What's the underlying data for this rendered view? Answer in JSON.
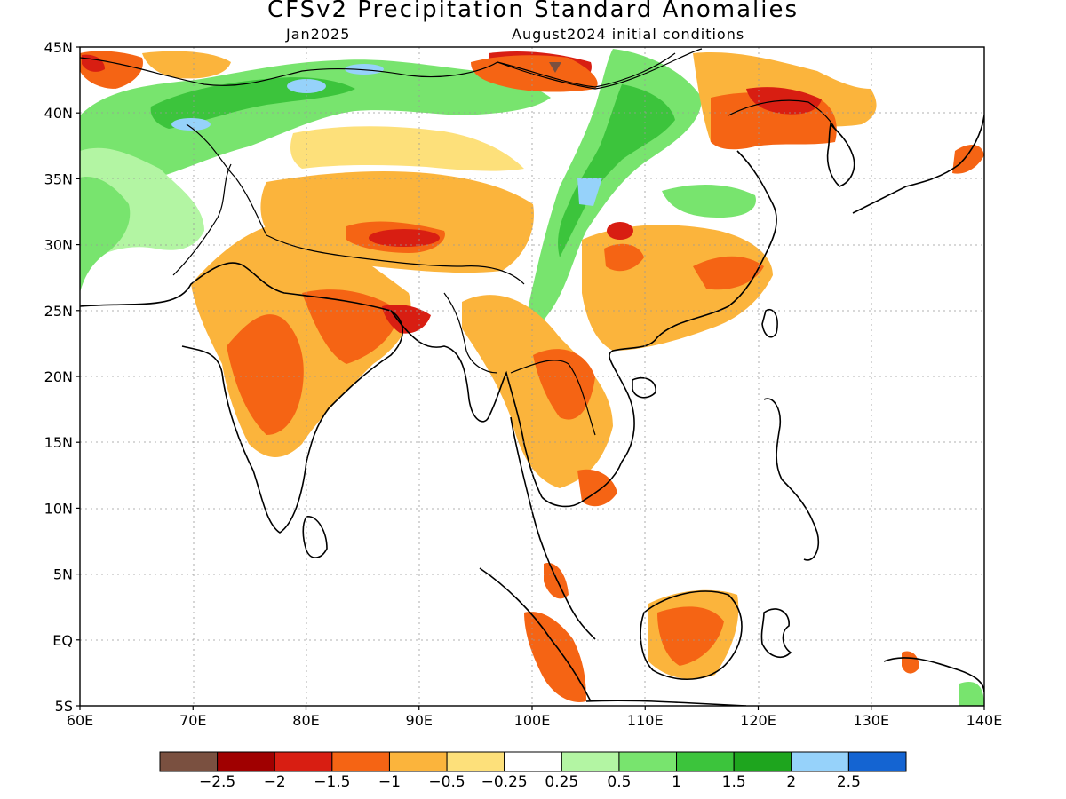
{
  "title": "CFSv2 Precipitation Standard Anomalies",
  "subtitle_left": "Jan2025",
  "subtitle_right": "August2024 initial conditions",
  "map": {
    "lon_range": [
      60,
      140
    ],
    "lat_range": [
      -5,
      45
    ],
    "lon_ticks": [
      {
        "value": 60,
        "label": "60E"
      },
      {
        "value": 70,
        "label": "70E"
      },
      {
        "value": 80,
        "label": "80E"
      },
      {
        "value": 90,
        "label": "90E"
      },
      {
        "value": 100,
        "label": "100E"
      },
      {
        "value": 110,
        "label": "110E"
      },
      {
        "value": 120,
        "label": "120E"
      },
      {
        "value": 130,
        "label": "130E"
      },
      {
        "value": 140,
        "label": "140E"
      }
    ],
    "lat_ticks": [
      {
        "value": -5,
        "label": "5S"
      },
      {
        "value": 0,
        "label": "EQ"
      },
      {
        "value": 5,
        "label": "5N"
      },
      {
        "value": 10,
        "label": "10N"
      },
      {
        "value": 15,
        "label": "15N"
      },
      {
        "value": 20,
        "label": "20N"
      },
      {
        "value": 25,
        "label": "25N"
      },
      {
        "value": 30,
        "label": "30N"
      },
      {
        "value": 35,
        "label": "35N"
      },
      {
        "value": 40,
        "label": "40N"
      },
      {
        "value": 45,
        "label": "45N"
      }
    ]
  },
  "colorbar": {
    "colors": [
      "#7a5040",
      "#a00000",
      "#d81e12",
      "#f56414",
      "#fbb43c",
      "#fde07a",
      "#ffffff",
      "#b3f5a3",
      "#78e46e",
      "#3cc43c",
      "#1ea51e",
      "#96d2fa",
      "#1464d2"
    ],
    "labels": [
      "−2.5",
      "−2",
      "−1.5",
      "−1",
      "−0.5",
      "−0.25",
      "0.25",
      "0.5",
      "1",
      "1.5",
      "2",
      "2.5"
    ]
  }
}
